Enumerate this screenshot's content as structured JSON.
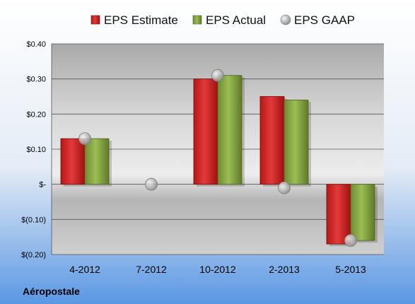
{
  "chart_data": {
    "type": "bar",
    "company": "Aéropostale",
    "categories": [
      "4-2012",
      "7-2012",
      "10-2012",
      "2-2013",
      "5-2013"
    ],
    "series": [
      {
        "name": "EPS Estimate",
        "type": "bar",
        "color": "#d42a2a",
        "values": [
          0.13,
          null,
          0.3,
          0.25,
          -0.17
        ]
      },
      {
        "name": "EPS Actual",
        "type": "bar",
        "color": "#8aaa45",
        "values": [
          0.13,
          null,
          0.31,
          0.24,
          -0.16
        ]
      },
      {
        "name": "EPS GAAP",
        "type": "scatter",
        "color": "#b0b0b0",
        "values": [
          0.13,
          0.0,
          0.31,
          -0.01,
          -0.16
        ]
      }
    ],
    "yticks": [
      {
        "value": 0.4,
        "label": "$0.40"
      },
      {
        "value": 0.3,
        "label": "$0.30"
      },
      {
        "value": 0.2,
        "label": "$0.20"
      },
      {
        "value": 0.1,
        "label": "$0.10"
      },
      {
        "value": 0.0,
        "label": "$-"
      },
      {
        "value": -0.1,
        "label": "$(0.10)"
      },
      {
        "value": -0.2,
        "label": "$(0.20)"
      }
    ],
    "ylim": [
      -0.2,
      0.4
    ],
    "grid": true,
    "legend_position": "top"
  }
}
